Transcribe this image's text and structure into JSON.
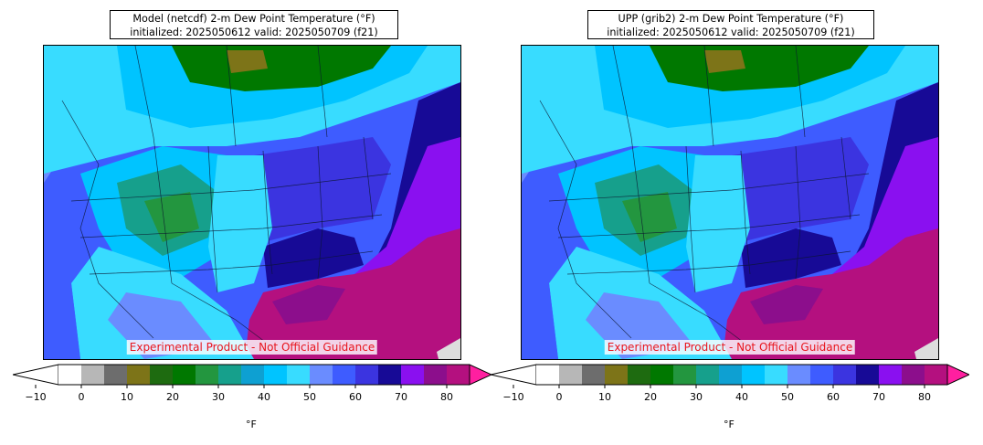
{
  "panels": [
    {
      "title_line1": "Model (netcdf) 2-m Dew Point Temperature (°F)",
      "title_line2": "initialized: 2025050612 valid: 2025050709 (f21)",
      "disclaimer": "Experimental Product - Not Official Guidance",
      "colorbar_unit": "°F"
    },
    {
      "title_line1": "UPP (grib2) 2-m Dew Point Temperature (°F)",
      "title_line2": "initialized: 2025050612 valid: 2025050709 (f21)",
      "disclaimer": "Experimental Product - Not Official Guidance",
      "colorbar_unit": "°F"
    }
  ],
  "colorbar": {
    "ticks": [
      "−10",
      "0",
      "10",
      "20",
      "30",
      "40",
      "50",
      "60",
      "70",
      "80"
    ],
    "min": -10,
    "max": 80,
    "step": 5,
    "under_color": "#ffffff",
    "over_color": "#ff1fa0",
    "colors": [
      "#ffffff",
      "#b7b7b7",
      "#6d6d6d",
      "#7d7418",
      "#1e6b10",
      "#007800",
      "#23963f",
      "#16a08c",
      "#0ea0d2",
      "#00c4ff",
      "#38dcff",
      "#6a8cff",
      "#3e5cff",
      "#3b34e0",
      "#170a96",
      "#8a10f0",
      "#8c0e8c",
      "#b4107f"
    ]
  }
}
